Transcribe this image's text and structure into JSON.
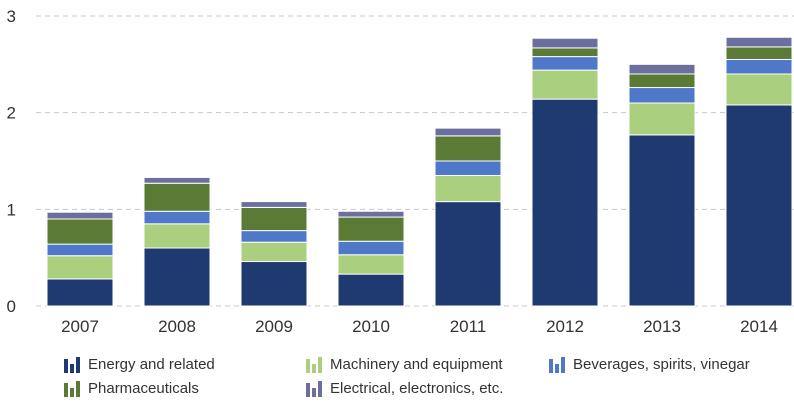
{
  "chart_data": {
    "type": "bar",
    "stacked": true,
    "categories": [
      "2007",
      "2008",
      "2009",
      "2010",
      "2011",
      "2012",
      "2013",
      "2014"
    ],
    "series": [
      {
        "name": "Energy and related",
        "color": "#1f3a70",
        "values": [
          0.28,
          0.6,
          0.46,
          0.33,
          1.08,
          2.14,
          1.77,
          2.08
        ]
      },
      {
        "name": "Machinery and equipment",
        "color": "#a9cf7f",
        "values": [
          0.24,
          0.25,
          0.2,
          0.2,
          0.27,
          0.3,
          0.33,
          0.32
        ]
      },
      {
        "name": "Beverages, spirits, vinegar",
        "color": "#4f78c9",
        "values": [
          0.12,
          0.13,
          0.12,
          0.14,
          0.15,
          0.14,
          0.16,
          0.15
        ]
      },
      {
        "name": "Pharmaceuticals",
        "color": "#5a7a35",
        "values": [
          0.26,
          0.29,
          0.24,
          0.25,
          0.26,
          0.09,
          0.14,
          0.13
        ]
      },
      {
        "name": "Electrical, electronics, etc.",
        "color": "#6b6f9e",
        "values": [
          0.07,
          0.06,
          0.06,
          0.06,
          0.08,
          0.1,
          0.1,
          0.1
        ]
      }
    ],
    "ylim": [
      0,
      3
    ],
    "yticks": [
      "0",
      "1",
      "2",
      "3"
    ],
    "grid": true,
    "legend_position": "bottom",
    "title": "",
    "xlabel": "",
    "ylabel": ""
  }
}
